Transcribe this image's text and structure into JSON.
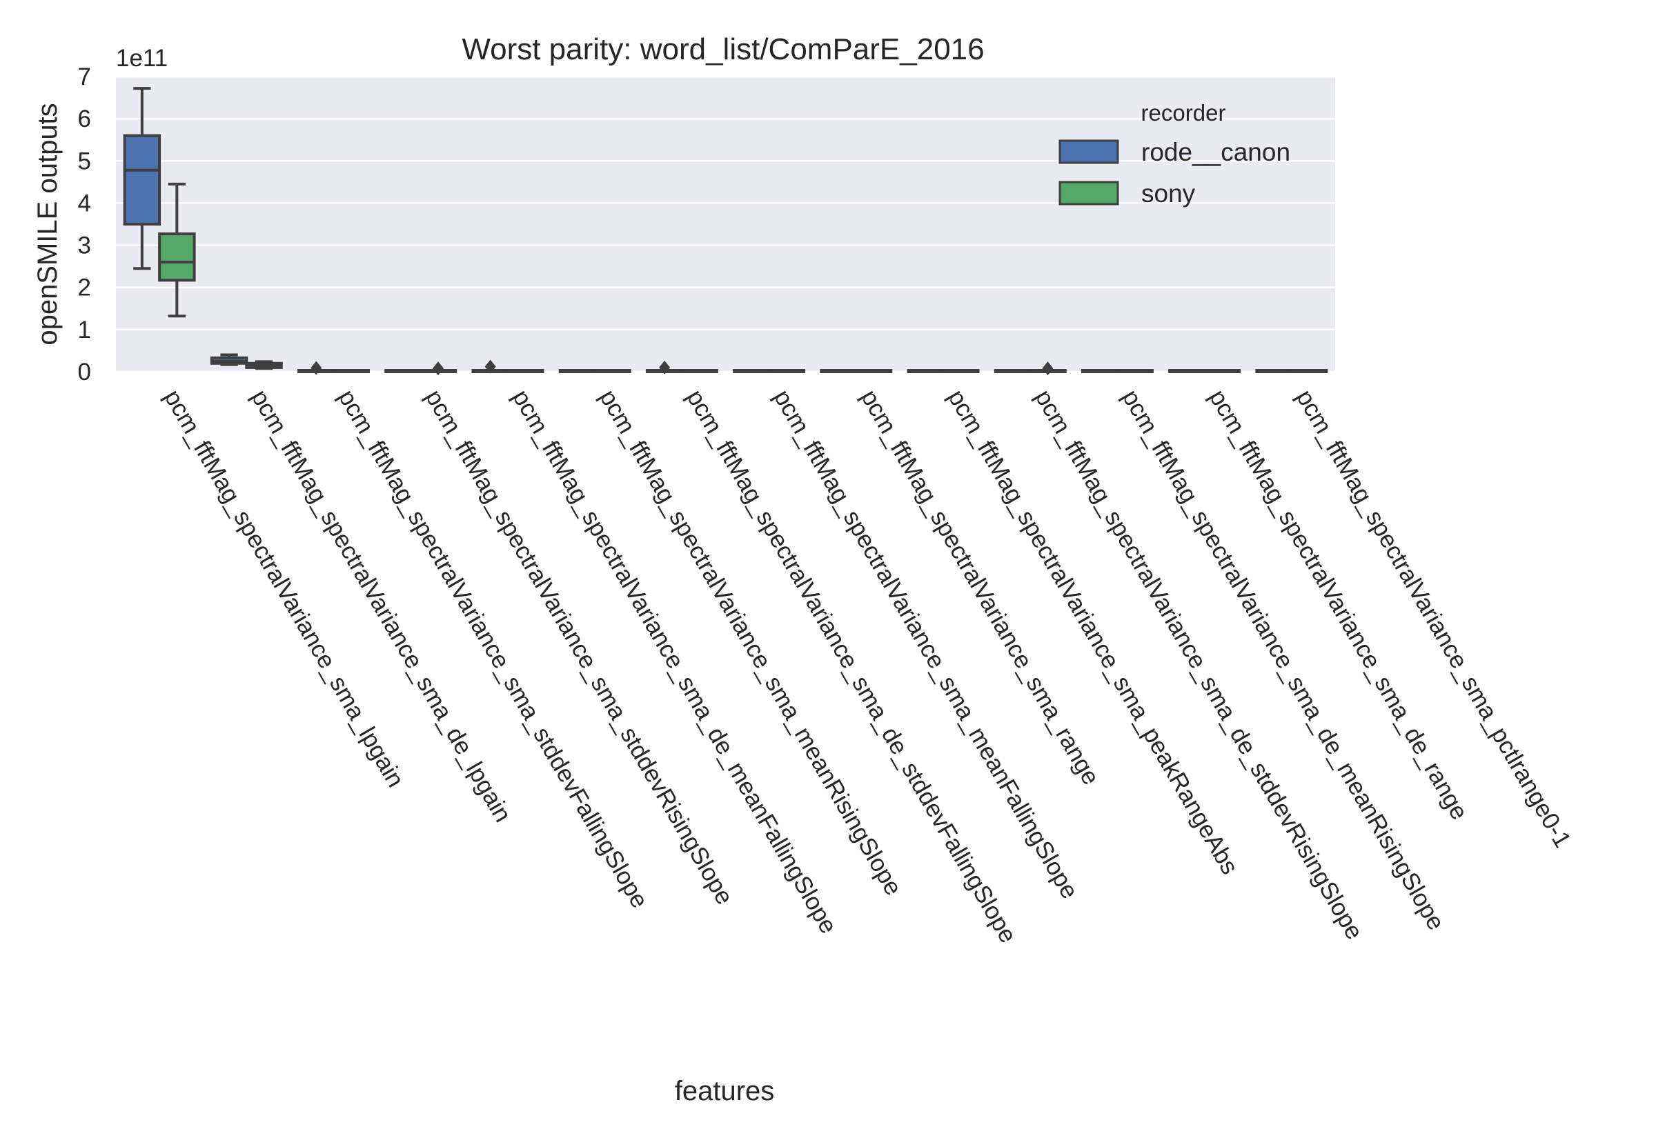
{
  "chart_data": {
    "type": "box",
    "title": "Worst parity: word_list/ComParE_2016",
    "xlabel": "features",
    "ylabel": "openSMILE outputs",
    "y_offset_label": "1e11",
    "y_scale_factor": 100000000000,
    "ylim": [
      0,
      7
    ],
    "yticks": [
      0,
      1,
      2,
      3,
      4,
      5,
      6,
      7
    ],
    "grid": true,
    "legend_position": "upper-right",
    "legend": {
      "title": "recorder",
      "entries": [
        "rode__canon",
        "sony"
      ]
    },
    "categories": [
      "pcm_fftMag_spectralVariance_sma_lpgain",
      "pcm_fftMag_spectralVariance_sma_de_lpgain",
      "pcm_fftMag_spectralVariance_sma_stddevFallingSlope",
      "pcm_fftMag_spectralVariance_sma_stddevRisingSlope",
      "pcm_fftMag_spectralVariance_sma_de_meanFallingSlope",
      "pcm_fftMag_spectralVariance_sma_meanRisingSlope",
      "pcm_fftMag_spectralVariance_sma_de_stddevFallingSlope",
      "pcm_fftMag_spectralVariance_sma_meanFallingSlope",
      "pcm_fftMag_spectralVariance_sma_range",
      "pcm_fftMag_spectralVariance_sma_peakRangeAbs",
      "pcm_fftMag_spectralVariance_sma_de_stddevRisingSlope",
      "pcm_fftMag_spectralVariance_sma_de_meanRisingSlope",
      "pcm_fftMag_spectralVariance_sma_de_range",
      "pcm_fftMag_spectralVariance_sma_pctlrange0-1"
    ],
    "series": [
      {
        "name": "rode__canon",
        "color": "#4c72b0",
        "boxes": [
          {
            "whisker_low": 2.45,
            "q1": 3.5,
            "median": 4.78,
            "q3": 5.6,
            "whisker_high": 6.72,
            "outliers": []
          },
          {
            "whisker_low": 0.17,
            "q1": 0.2,
            "median": 0.25,
            "q3": 0.33,
            "whisker_high": 0.4,
            "outliers": []
          },
          {
            "whisker_low": 0,
            "q1": 0,
            "median": 0,
            "q3": 0.02,
            "whisker_high": 0.03,
            "outliers": [
              0.09
            ]
          },
          {
            "whisker_low": 0,
            "q1": 0,
            "median": 0,
            "q3": 0.01,
            "whisker_high": 0.02,
            "outliers": []
          },
          {
            "whisker_low": 0,
            "q1": 0,
            "median": 0,
            "q3": 0.01,
            "whisker_high": 0.02,
            "outliers": [
              0.12
            ]
          },
          {
            "whisker_low": 0,
            "q1": 0,
            "median": 0,
            "q3": 0.01,
            "whisker_high": 0.02,
            "outliers": []
          },
          {
            "whisker_low": 0,
            "q1": 0,
            "median": 0,
            "q3": 0.01,
            "whisker_high": 0.02,
            "outliers": [
              0.1
            ]
          },
          {
            "whisker_low": 0,
            "q1": 0,
            "median": 0,
            "q3": 0.01,
            "whisker_high": 0.02,
            "outliers": []
          },
          {
            "whisker_low": 0,
            "q1": 0,
            "median": 0,
            "q3": 0.01,
            "whisker_high": 0.02,
            "outliers": []
          },
          {
            "whisker_low": 0,
            "q1": 0,
            "median": 0,
            "q3": 0.01,
            "whisker_high": 0.02,
            "outliers": []
          },
          {
            "whisker_low": 0,
            "q1": 0,
            "median": 0,
            "q3": 0.01,
            "whisker_high": 0.02,
            "outliers": []
          },
          {
            "whisker_low": 0,
            "q1": 0,
            "median": 0,
            "q3": 0.01,
            "whisker_high": 0.02,
            "outliers": []
          },
          {
            "whisker_low": 0,
            "q1": 0,
            "median": 0,
            "q3": 0.01,
            "whisker_high": 0.02,
            "outliers": []
          },
          {
            "whisker_low": 0,
            "q1": 0,
            "median": 0,
            "q3": 0.01,
            "whisker_high": 0.02,
            "outliers": []
          }
        ]
      },
      {
        "name": "sony",
        "color": "#55a868",
        "boxes": [
          {
            "whisker_low": 1.32,
            "q1": 2.17,
            "median": 2.6,
            "q3": 3.27,
            "whisker_high": 4.45,
            "outliers": []
          },
          {
            "whisker_low": 0.08,
            "q1": 0.1,
            "median": 0.15,
            "q3": 0.2,
            "whisker_high": 0.24,
            "outliers": []
          },
          {
            "whisker_low": 0,
            "q1": 0,
            "median": 0,
            "q3": 0.01,
            "whisker_high": 0.02,
            "outliers": []
          },
          {
            "whisker_low": 0,
            "q1": 0,
            "median": 0,
            "q3": 0.01,
            "whisker_high": 0.02,
            "outliers": [
              0.08
            ]
          },
          {
            "whisker_low": 0,
            "q1": 0,
            "median": 0,
            "q3": 0.01,
            "whisker_high": 0.02,
            "outliers": []
          },
          {
            "whisker_low": 0,
            "q1": 0,
            "median": 0,
            "q3": 0.01,
            "whisker_high": 0.02,
            "outliers": []
          },
          {
            "whisker_low": 0,
            "q1": 0,
            "median": 0,
            "q3": 0.01,
            "whisker_high": 0.02,
            "outliers": []
          },
          {
            "whisker_low": 0,
            "q1": 0,
            "median": 0,
            "q3": 0.01,
            "whisker_high": 0.02,
            "outliers": []
          },
          {
            "whisker_low": 0,
            "q1": 0,
            "median": 0,
            "q3": 0.01,
            "whisker_high": 0.02,
            "outliers": []
          },
          {
            "whisker_low": 0,
            "q1": 0,
            "median": 0,
            "q3": 0.01,
            "whisker_high": 0.02,
            "outliers": []
          },
          {
            "whisker_low": 0,
            "q1": 0,
            "median": 0,
            "q3": 0.01,
            "whisker_high": 0.02,
            "outliers": [
              0.08
            ]
          },
          {
            "whisker_low": 0,
            "q1": 0,
            "median": 0,
            "q3": 0.01,
            "whisker_high": 0.02,
            "outliers": []
          },
          {
            "whisker_low": 0,
            "q1": 0,
            "median": 0,
            "q3": 0.01,
            "whisker_high": 0.02,
            "outliers": []
          },
          {
            "whisker_low": 0,
            "q1": 0,
            "median": 0,
            "q3": 0.01,
            "whisker_high": 0.02,
            "outliers": []
          }
        ]
      }
    ],
    "colors": {
      "plot_background": "#eaeaf2",
      "grid": "#ffffff",
      "box_edge": "#3f3f3f",
      "text": "#262626"
    }
  }
}
